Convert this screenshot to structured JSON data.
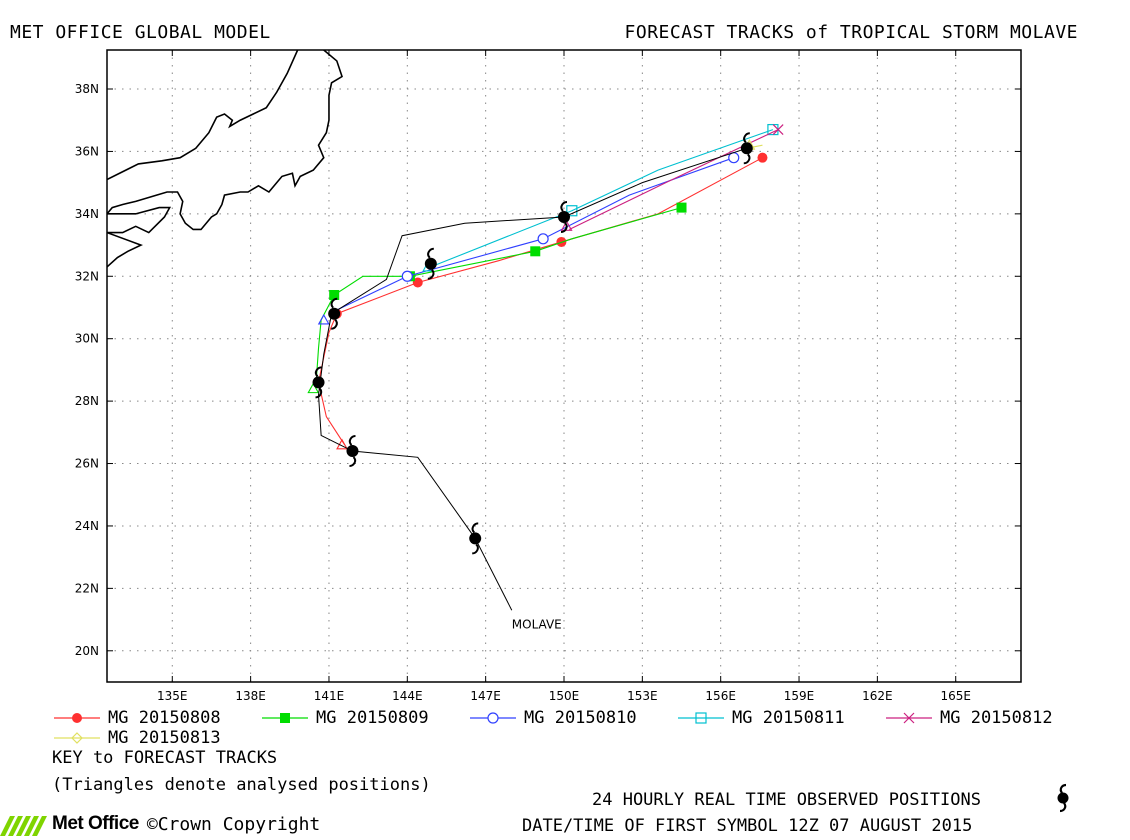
{
  "header": {
    "left_title": "MET OFFICE GLOBAL MODEL",
    "right_title": "FORECAST TRACKS of TROPICAL STORM MOLAVE"
  },
  "map": {
    "lon_range": [
      132.5,
      167.5
    ],
    "lat_range": [
      19,
      39.25
    ],
    "lon_ticks": [
      {
        "value": 135,
        "label": "135E"
      },
      {
        "value": 138,
        "label": "138E"
      },
      {
        "value": 141,
        "label": "141E"
      },
      {
        "value": 144,
        "label": "144E"
      },
      {
        "value": 147,
        "label": "147E"
      },
      {
        "value": 150,
        "label": "150E"
      },
      {
        "value": 153,
        "label": "153E"
      },
      {
        "value": 156,
        "label": "156E"
      },
      {
        "value": 159,
        "label": "159E"
      },
      {
        "value": 162,
        "label": "162E"
      },
      {
        "value": 165,
        "label": "165E"
      }
    ],
    "lat_ticks": [
      {
        "value": 20,
        "label": "20N"
      },
      {
        "value": 22,
        "label": "22N"
      },
      {
        "value": 24,
        "label": "24N"
      },
      {
        "value": 26,
        "label": "26N"
      },
      {
        "value": 28,
        "label": "28N"
      },
      {
        "value": 30,
        "label": "30N"
      },
      {
        "value": 32,
        "label": "32N"
      },
      {
        "value": 34,
        "label": "34N"
      },
      {
        "value": 36,
        "label": "36N"
      },
      {
        "value": 38,
        "label": "38N"
      }
    ],
    "grid": true,
    "coastlines": [
      [
        [
          132.5,
          35.1
        ],
        [
          133.7,
          35.6
        ],
        [
          134.6,
          35.7
        ],
        [
          135.3,
          35.8
        ],
        [
          135.9,
          36.1
        ],
        [
          136.4,
          36.6
        ],
        [
          136.7,
          37.1
        ],
        [
          137.0,
          37.2
        ],
        [
          137.3,
          37.0
        ],
        [
          137.2,
          36.8
        ],
        [
          137.6,
          37.0
        ],
        [
          138.1,
          37.2
        ],
        [
          138.6,
          37.4
        ],
        [
          139.0,
          37.9
        ],
        [
          139.4,
          38.5
        ],
        [
          139.8,
          39.25
        ]
      ],
      [
        [
          140.8,
          39.25
        ],
        [
          141.3,
          38.9
        ],
        [
          141.5,
          38.4
        ],
        [
          141.1,
          38.2
        ],
        [
          141.0,
          37.8
        ],
        [
          141.0,
          37.0
        ],
        [
          140.9,
          36.6
        ],
        [
          140.6,
          36.2
        ],
        [
          140.8,
          35.8
        ],
        [
          140.4,
          35.4
        ],
        [
          139.9,
          35.2
        ],
        [
          139.7,
          34.9
        ],
        [
          139.6,
          35.3
        ],
        [
          139.2,
          35.2
        ],
        [
          138.9,
          34.9
        ],
        [
          138.7,
          34.7
        ],
        [
          138.3,
          34.9
        ],
        [
          137.9,
          34.7
        ],
        [
          137.6,
          34.7
        ],
        [
          137.0,
          34.6
        ],
        [
          136.9,
          34.3
        ],
        [
          136.7,
          34.0
        ],
        [
          136.5,
          33.9
        ],
        [
          136.1,
          33.5
        ],
        [
          135.8,
          33.5
        ],
        [
          135.5,
          33.7
        ],
        [
          135.3,
          34.0
        ],
        [
          135.4,
          34.4
        ],
        [
          135.2,
          34.7
        ],
        [
          134.8,
          34.7
        ],
        [
          134.4,
          34.6
        ],
        [
          133.6,
          34.4
        ],
        [
          133.1,
          34.3
        ],
        [
          132.7,
          34.2
        ],
        [
          132.5,
          34.0
        ]
      ],
      [
        [
          132.5,
          33.4
        ],
        [
          133.1,
          33.4
        ],
        [
          133.6,
          33.6
        ],
        [
          134.1,
          33.4
        ],
        [
          134.7,
          33.9
        ],
        [
          134.9,
          34.2
        ],
        [
          134.5,
          34.2
        ],
        [
          133.6,
          34.0
        ],
        [
          133.0,
          34.0
        ],
        [
          132.5,
          34.0
        ]
      ],
      [
        [
          132.5,
          32.3
        ],
        [
          132.9,
          32.6
        ],
        [
          133.3,
          32.8
        ],
        [
          133.8,
          33.0
        ],
        [
          132.5,
          33.4
        ]
      ]
    ],
    "tracks": [
      {
        "name": "MG 20150808",
        "color": "#ff3030",
        "marker": "filled-circle",
        "points": [
          [
            141.6,
            26.6
          ],
          [
            140.9,
            27.5
          ],
          [
            140.6,
            28.6
          ],
          [
            141.0,
            30.2
          ],
          [
            141.3,
            30.8
          ],
          [
            144.4,
            31.8
          ],
          [
            147.5,
            32.5
          ],
          [
            149.9,
            33.1
          ],
          [
            153.6,
            34.0
          ],
          [
            157.6,
            35.8
          ]
        ],
        "markers": [
          [
            140.6,
            28.6
          ],
          [
            141.3,
            30.8
          ],
          [
            144.4,
            31.8
          ],
          [
            149.9,
            33.1
          ],
          [
            157.6,
            35.8
          ]
        ]
      },
      {
        "name": "MG 20150809",
        "color": "#00dd00",
        "marker": "filled-square",
        "points": [
          [
            140.5,
            28.5
          ],
          [
            140.6,
            29.7
          ],
          [
            140.7,
            30.6
          ],
          [
            141.2,
            31.4
          ],
          [
            142.3,
            32.0
          ],
          [
            144.1,
            32.0
          ],
          [
            148.9,
            32.8
          ],
          [
            150.3,
            33.2
          ],
          [
            154.5,
            34.2
          ]
        ],
        "markers": [
          [
            141.2,
            31.4
          ],
          [
            144.1,
            32.0
          ],
          [
            148.9,
            32.8
          ],
          [
            154.5,
            34.2
          ]
        ]
      },
      {
        "name": "MG 20150810",
        "color": "#3040ff",
        "marker": "open-circle",
        "points": [
          [
            141.0,
            30.8
          ],
          [
            144.0,
            32.0
          ],
          [
            149.2,
            33.2
          ],
          [
            152.5,
            34.6
          ],
          [
            156.5,
            35.8
          ]
        ],
        "markers": [
          [
            144.0,
            32.0
          ],
          [
            149.2,
            33.2
          ],
          [
            156.5,
            35.8
          ]
        ]
      },
      {
        "name": "MG 20150811",
        "color": "#00c0d0",
        "marker": "open-square",
        "points": [
          [
            144.9,
            32.3
          ],
          [
            150.3,
            34.1
          ],
          [
            153.6,
            35.4
          ],
          [
            158.0,
            36.7
          ]
        ],
        "markers": [
          [
            150.3,
            34.1
          ],
          [
            158.0,
            36.7
          ]
        ]
      },
      {
        "name": "MG 20150812",
        "color": "#cc2080",
        "marker": "cross",
        "points": [
          [
            150.2,
            33.5
          ],
          [
            153.9,
            35.0
          ],
          [
            158.2,
            36.7
          ]
        ],
        "markers": [
          [
            158.2,
            36.7
          ]
        ]
      },
      {
        "name": "MG 20150813",
        "color": "#e0e060",
        "marker": "diamond",
        "points": [
          [
            157.0,
            36.1
          ],
          [
            157.6,
            36.2
          ]
        ],
        "markers": []
      }
    ],
    "observed_track": [
      [
        148.0,
        21.3
      ],
      [
        146.6,
        23.6
      ],
      [
        144.4,
        26.2
      ],
      [
        141.9,
        26.4
      ],
      [
        140.7,
        26.9
      ],
      [
        140.6,
        28.2
      ],
      [
        140.8,
        29.5
      ],
      [
        141.1,
        30.8
      ],
      [
        143.2,
        31.9
      ],
      [
        143.8,
        33.3
      ],
      [
        146.2,
        33.7
      ],
      [
        150.0,
        33.9
      ],
      [
        153.0,
        35.0
      ],
      [
        157.0,
        36.1
      ]
    ],
    "observed_symbols": [
      [
        146.6,
        23.6
      ],
      [
        141.9,
        26.4
      ],
      [
        140.6,
        28.6
      ],
      [
        141.2,
        30.8
      ],
      [
        144.9,
        32.4
      ],
      [
        150.0,
        33.9
      ],
      [
        157.0,
        36.1
      ]
    ],
    "analysed_triangles": [
      [
        141.5,
        26.6
      ],
      [
        140.4,
        28.4
      ],
      [
        140.8,
        30.6
      ],
      [
        144.8,
        32.3
      ],
      [
        150.1,
        33.6
      ],
      [
        157.1,
        36.2
      ]
    ],
    "storm_label": {
      "text": "MOLAVE",
      "lon": 148.0,
      "lat": 20.85
    }
  },
  "legend": {
    "items": [
      {
        "label": "MG 20150808",
        "color": "#ff3030",
        "marker": "filled-circle"
      },
      {
        "label": "MG 20150809",
        "color": "#00dd00",
        "marker": "filled-square"
      },
      {
        "label": "MG 20150810",
        "color": "#3040ff",
        "marker": "open-circle"
      },
      {
        "label": "MG 20150811",
        "color": "#00c0d0",
        "marker": "open-square"
      },
      {
        "label": "MG 20150812",
        "color": "#cc2080",
        "marker": "cross"
      },
      {
        "label": "MG 20150813",
        "color": "#e0e060",
        "marker": "diamond"
      }
    ],
    "key_title": "KEY to FORECAST TRACKS",
    "key_note": "(Triangles denote analysed positions)"
  },
  "footer": {
    "observed_note": "24 HOURLY REAL TIME OBSERVED POSITIONS",
    "first_symbol": "DATE/TIME OF FIRST SYMBOL 12Z 07 AUGUST 2015",
    "brand": "Met Office",
    "copyright": "©Crown Copyright",
    "storm_symbol_icon": "tropical-storm-icon"
  }
}
